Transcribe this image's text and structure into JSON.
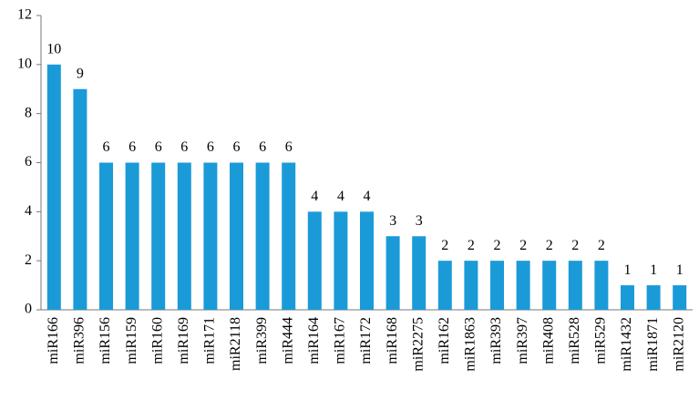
{
  "chart_data": {
    "type": "bar",
    "categories": [
      "miR166",
      "miR396",
      "miR156",
      "miR159",
      "miR160",
      "miR169",
      "miR171",
      "miR2118",
      "miR399",
      "miR444",
      "miR164",
      "miR167",
      "miR172",
      "miR168",
      "miR2275",
      "miR162",
      "miR1863",
      "miR393",
      "miR397",
      "miR408",
      "miR528",
      "miR529",
      "miR1432",
      "miR1871",
      "miR2120"
    ],
    "values": [
      10,
      9,
      6,
      6,
      6,
      6,
      6,
      6,
      6,
      6,
      4,
      4,
      4,
      3,
      3,
      2,
      2,
      2,
      2,
      2,
      2,
      2,
      1,
      1,
      1
    ],
    "color": "#1b9ad8",
    "ylim": [
      0,
      12
    ],
    "yticks": [
      0,
      2,
      4,
      6,
      8,
      10,
      12
    ],
    "grid": false,
    "data_labels": true
  }
}
